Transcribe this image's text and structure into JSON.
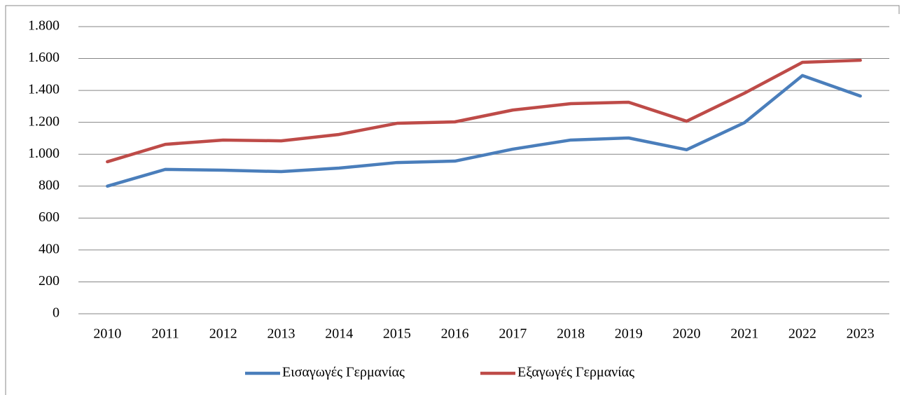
{
  "chart_data": {
    "type": "line",
    "categories": [
      "2010",
      "2011",
      "2012",
      "2013",
      "2014",
      "2015",
      "2016",
      "2017",
      "2018",
      "2019",
      "2020",
      "2021",
      "2022",
      "2023"
    ],
    "series": [
      {
        "name": "Εισαγωγές Γερμανίας",
        "color": "#4a7ebb",
        "values": [
          800,
          905,
          900,
          891,
          913,
          948,
          957,
          1032,
          1089,
          1102,
          1028,
          1198,
          1493,
          1365
        ]
      },
      {
        "name": "Εξαγωγές Γερμανίας",
        "color": "#be4b48",
        "values": [
          953,
          1062,
          1089,
          1084,
          1124,
          1194,
          1203,
          1277,
          1317,
          1326,
          1207,
          1383,
          1576,
          1589
        ]
      }
    ],
    "ylim": [
      0,
      1800
    ],
    "yticks": [
      0,
      200,
      400,
      600,
      800,
      {
        "value": 1000,
        "label": "1.000"
      },
      {
        "value": 1200,
        "label": "1.200"
      },
      {
        "value": 1400,
        "label": "1.400"
      },
      {
        "value": 1600,
        "label": "1.600"
      },
      {
        "value": 1800,
        "label": "1.800"
      }
    ],
    "grid": true,
    "legend": "bottom"
  }
}
